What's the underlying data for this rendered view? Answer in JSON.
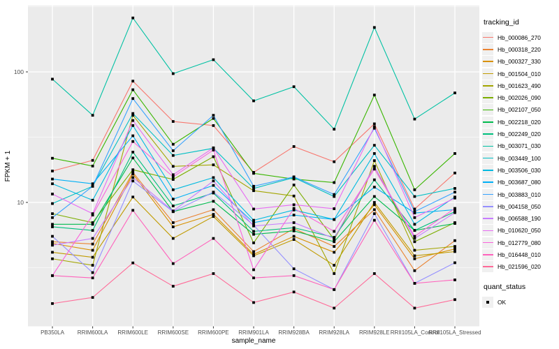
{
  "colors": {
    "panel_bg": "#EBEBEB",
    "grid": "#FFFFFF",
    "tick_text": "#4D4D4D",
    "tick_mark": "#333333",
    "axis_title": "#000000",
    "point": "#000000",
    "legend_key_bg": "#F0F0F0"
  },
  "chart_data": {
    "type": "line",
    "title": "",
    "xlabel": "sample_name",
    "ylabel": "FPKM + 1",
    "y_scale": "log10",
    "ylim": [
      1.13,
      314
    ],
    "y_ticks": [
      10,
      100
    ],
    "y_minor_ticks": [
      3.162,
      31.623,
      316.23
    ],
    "grid": "on",
    "legend_position": "right",
    "legend_title": "tracking_id",
    "point_legend": {
      "title": "quant_status",
      "label": "OK",
      "shape": "filled-square",
      "color": "#000000"
    },
    "categories": [
      "PB350LA",
      "RRIM600LA",
      "RRIM600LE",
      "RRIM600SE",
      "RRIM600PE",
      "RRIM901LA",
      "RRIM928BA",
      "RRIM928LA",
      "RRIM928LE",
      "RRII105LA_Control",
      "RRII105LA_Stressed"
    ],
    "series": [
      {
        "name": "Hb_000086_270",
        "color": "#F8766D",
        "values": [
          17.4,
          21.0,
          85.0,
          41.7,
          38.8,
          17.0,
          26.8,
          20.5,
          40.0,
          8.9,
          16.8
        ]
      },
      {
        "name": "Hb_000318_220",
        "color": "#EA8331",
        "values": [
          5.0,
          4.8,
          17.0,
          7.0,
          8.8,
          4.2,
          6.3,
          4.6,
          8.8,
          3.0,
          5.1
        ]
      },
      {
        "name": "Hb_000327_330",
        "color": "#D89000",
        "values": [
          4.85,
          4.3,
          16.5,
          6.5,
          8.1,
          4.0,
          5.5,
          4.15,
          9.6,
          3.7,
          4.4
        ]
      },
      {
        "name": "Hb_001504_010",
        "color": "#C09B00",
        "values": [
          4.15,
          3.8,
          11.0,
          5.3,
          7.8,
          3.9,
          5.2,
          3.3,
          10.0,
          3.9,
          4.2
        ]
      },
      {
        "name": "Hb_001623_490",
        "color": "#A3A500",
        "values": [
          3.7,
          3.3,
          46.5,
          18.9,
          19.4,
          12.3,
          11.2,
          2.85,
          20.9,
          4.3,
          4.6
        ]
      },
      {
        "name": "Hb_002026_090",
        "color": "#7CAE00",
        "values": [
          8.2,
          7.0,
          17.8,
          15.0,
          22.4,
          4.9,
          13.6,
          5.2,
          18.9,
          5.0,
          7.0
        ]
      },
      {
        "name": "Hb_002107_050",
        "color": "#39B600",
        "values": [
          21.8,
          19.0,
          73.0,
          27.9,
          44.0,
          16.7,
          15.1,
          14.2,
          66.5,
          12.5,
          23.7
        ]
      },
      {
        "name": "Hb_002218_020",
        "color": "#00BB4E",
        "values": [
          6.8,
          6.8,
          21.9,
          8.5,
          10.2,
          5.7,
          6.05,
          5.0,
          11.1,
          6.1,
          6.9
        ]
      },
      {
        "name": "Hb_002249_020",
        "color": "#00BF7D",
        "values": [
          6.5,
          6.1,
          24.3,
          9.4,
          11.8,
          6.0,
          6.4,
          5.4,
          14.9,
          6.1,
          8.5
        ]
      },
      {
        "name": "Hb_003071_030",
        "color": "#00C1A3",
        "values": [
          88,
          46.5,
          259,
          97,
          124,
          60,
          77,
          36.4,
          219,
          43.5,
          69
        ]
      },
      {
        "name": "Hb_003449_100",
        "color": "#00BFC4",
        "values": [
          9.8,
          13.3,
          48.0,
          22.9,
          26.0,
          12.8,
          15.5,
          11.1,
          27.4,
          11.1,
          12.8
        ]
      },
      {
        "name": "Hb_003506_030",
        "color": "#00BAE0",
        "values": [
          13.9,
          10.4,
          38.8,
          12.5,
          15.5,
          7.3,
          8.75,
          7.4,
          23.7,
          6.8,
          11.0
        ]
      },
      {
        "name": "Hb_003687_080",
        "color": "#00B0F6",
        "values": [
          15.1,
          13.9,
          32.4,
          10.6,
          13.5,
          7.0,
          8.0,
          7.4,
          13.1,
          8.3,
          8.8
        ]
      },
      {
        "name": "Hb_003883_010",
        "color": "#35A2FF",
        "values": [
          7.65,
          13.3,
          62.5,
          24.9,
          46.5,
          13.3,
          15.7,
          11.5,
          37.0,
          8.5,
          12.0
        ]
      },
      {
        "name": "Hb_004158_050",
        "color": "#9590FF",
        "values": [
          5.5,
          2.9,
          14.6,
          8.5,
          12.0,
          6.7,
          3.1,
          2.15,
          8.2,
          2.4,
          3.45
        ]
      },
      {
        "name": "Hb_006588_190",
        "color": "#C77CFF",
        "values": [
          4.7,
          5.3,
          15.5,
          8.6,
          14.6,
          6.6,
          7.0,
          5.3,
          18.9,
          5.3,
          8.35
        ]
      },
      {
        "name": "Hb_010620_050",
        "color": "#E76BF3",
        "values": [
          11.6,
          8.2,
          42.4,
          16.3,
          26.2,
          8.9,
          9.6,
          8.95,
          38.0,
          7.65,
          10.8
        ]
      },
      {
        "name": "Hb_012779_080",
        "color": "#FA62DB",
        "values": [
          2.75,
          8.0,
          29.3,
          15.7,
          25.2,
          3.05,
          9.0,
          6.0,
          18.0,
          5.5,
          9.0
        ]
      },
      {
        "name": "Hb_016448_010",
        "color": "#FF62BC",
        "values": [
          2.75,
          2.64,
          8.7,
          3.4,
          5.3,
          2.64,
          2.75,
          2.15,
          7.3,
          2.4,
          2.55
        ]
      },
      {
        "name": "Hb_021596_020",
        "color": "#FF6A98",
        "values": [
          1.68,
          1.87,
          3.44,
          2.28,
          2.85,
          1.71,
          2.06,
          1.55,
          2.85,
          1.55,
          1.8
        ]
      }
    ]
  }
}
